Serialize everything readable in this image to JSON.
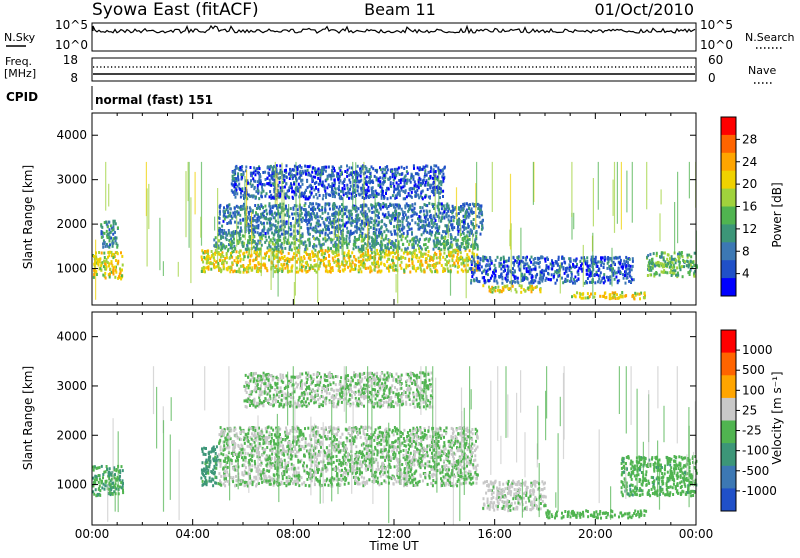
{
  "header": {
    "station": "Syowa East (fitACF)",
    "beam": "Beam 11",
    "date": "01/Oct/2010"
  },
  "strips": {
    "nsky_label": "N.Sky",
    "nsky_ticks": [
      "10^5",
      "10^0"
    ],
    "nsearch_label": "N.Search",
    "nsearch_ticks": [
      "10^5",
      "10^0"
    ],
    "freq_label": "Freq.",
    "freq_unit": "[MHz]",
    "freq_ticks": [
      "18",
      "8"
    ],
    "nave_label": "Nave",
    "nave_ticks": [
      "60",
      "0"
    ],
    "cpid_label": "CPID",
    "cpid_value": "normal (fast) 151"
  },
  "chart_data": [
    {
      "type": "heatmap",
      "name": "power",
      "xlabel": "",
      "ylabel": "Slant Range [km]",
      "x_range": [
        "00:00",
        "00:00 (+24h)"
      ],
      "x_ticks": [
        "00:00",
        "04:00",
        "08:00",
        "12:00",
        "16:00",
        "20:00",
        "00:00"
      ],
      "ylim": [
        180,
        4500
      ],
      "y_ticks": [
        1000,
        2000,
        3000,
        4000
      ],
      "colorbar_label": "Power [dB]",
      "colorbar_ticks": [
        "28",
        "24",
        "20",
        "16",
        "12",
        "8",
        "4"
      ],
      "colorbar_colors": [
        "#0000ff",
        "#2050c8",
        "#3c78b4",
        "#3c9678",
        "#50b450",
        "#a0d23c",
        "#f0d200",
        "#ffa500",
        "#ff6400",
        "#ff0000"
      ],
      "regions": [
        {
          "t": [
            0.0,
            1.2
          ],
          "range": [
            800,
            1400
          ],
          "value": 20
        },
        {
          "t": [
            0.3,
            1.0
          ],
          "range": [
            1500,
            2100
          ],
          "value": 10
        },
        {
          "t": [
            4.3,
            15.3
          ],
          "range": [
            950,
            1450
          ],
          "value": 20
        },
        {
          "t": [
            4.8,
            15.3
          ],
          "range": [
            1450,
            1800
          ],
          "value": 12
        },
        {
          "t": [
            5.0,
            15.5
          ],
          "range": [
            1800,
            2500
          ],
          "value": 8
        },
        {
          "t": [
            5.5,
            14.0
          ],
          "range": [
            2600,
            3350
          ],
          "value": 6
        },
        {
          "t": [
            15.0,
            21.5
          ],
          "range": [
            700,
            1300
          ],
          "value": 6
        },
        {
          "t": [
            15.5,
            17.8
          ],
          "range": [
            500,
            650
          ],
          "value": 20
        },
        {
          "t": [
            19.0,
            22.0
          ],
          "range": [
            350,
            500
          ],
          "value": 20
        },
        {
          "t": [
            22.0,
            24.0
          ],
          "range": [
            850,
            1400
          ],
          "value": 14
        }
      ]
    },
    {
      "type": "heatmap",
      "name": "velocity",
      "xlabel": "Time UT",
      "ylabel": "Slant Range [km]",
      "x_range": [
        "00:00",
        "00:00 (+24h)"
      ],
      "x_ticks": [
        "00:00",
        "04:00",
        "08:00",
        "12:00",
        "16:00",
        "20:00",
        "00:00"
      ],
      "ylim": [
        180,
        4500
      ],
      "y_ticks": [
        1000,
        2000,
        3000,
        4000
      ],
      "colorbar_label": "Velocity [m s⁻¹]",
      "colorbar_ticks": [
        "1000",
        "500",
        "100",
        "25",
        "-25",
        "-100",
        "-500",
        "-1000"
      ],
      "colorbar_colors": [
        "#ff0000",
        "#ff6400",
        "#ffa500",
        "#c8c8c8",
        "#50b450",
        "#3c9678",
        "#3c78b4",
        "#2050c8"
      ],
      "regions": [
        {
          "t": [
            0.0,
            1.2
          ],
          "range": [
            800,
            1400
          ],
          "value": -300
        },
        {
          "t": [
            4.3,
            5.0
          ],
          "range": [
            1000,
            1800
          ],
          "value": -400
        },
        {
          "t": [
            5.0,
            15.3
          ],
          "range": [
            1000,
            2200
          ],
          "value": 0
        },
        {
          "t": [
            6.0,
            13.5
          ],
          "range": [
            2600,
            3300
          ],
          "value": 0
        },
        {
          "t": [
            15.5,
            18.0
          ],
          "range": [
            500,
            1100
          ],
          "value": 80
        },
        {
          "t": [
            18.0,
            22.0
          ],
          "range": [
            350,
            500
          ],
          "value": -150
        },
        {
          "t": [
            21.0,
            24.0
          ],
          "range": [
            800,
            1600
          ],
          "value": -200
        }
      ]
    }
  ]
}
